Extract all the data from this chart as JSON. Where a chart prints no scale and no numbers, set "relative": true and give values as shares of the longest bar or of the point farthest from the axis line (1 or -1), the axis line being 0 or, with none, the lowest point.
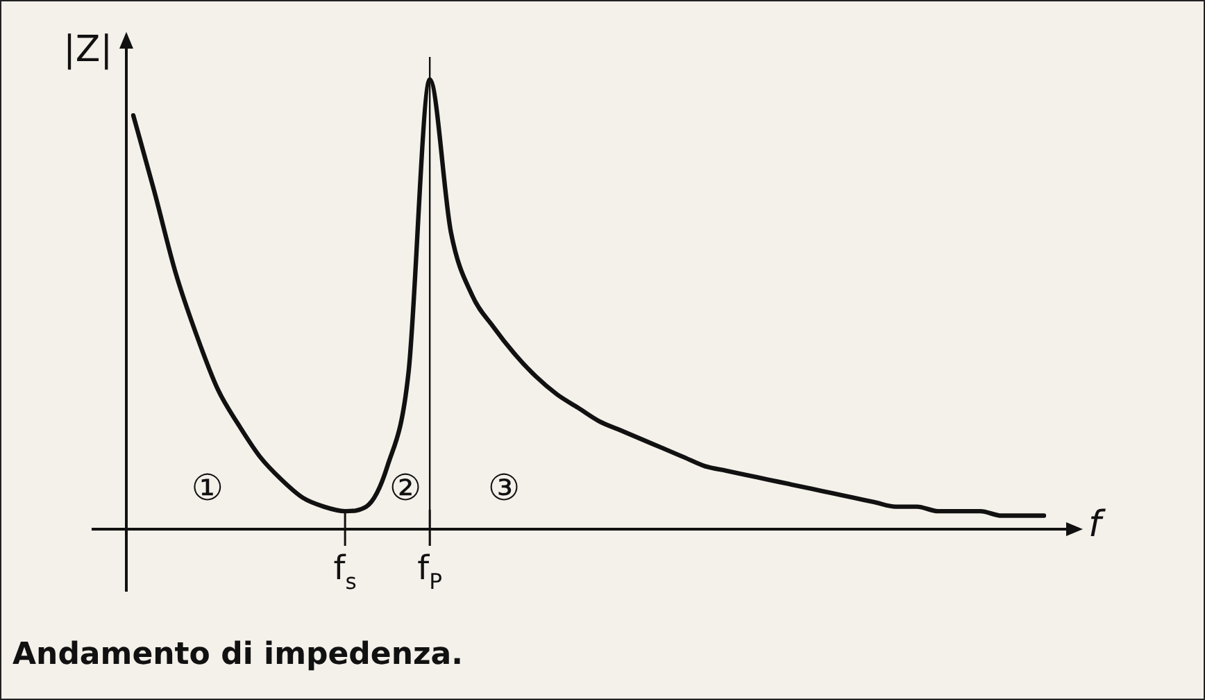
{
  "chart_data": {
    "type": "line",
    "relative": true,
    "title": "Andamento di impedenza.",
    "xlabel": "f",
    "ylabel": "|Z|",
    "categories": [
      null,
      null,
      null,
      null,
      null,
      null,
      null,
      null,
      null,
      null,
      "f$_{s}$",
      null,
      null,
      null,
      "f$_{P}$",
      null,
      null,
      null,
      null,
      null,
      null,
      null,
      null,
      null,
      null,
      null,
      null,
      null,
      null,
      null,
      null,
      null,
      null,
      null,
      null,
      null,
      null,
      null,
      null,
      null,
      null,
      null,
      null,
      null
    ],
    "series": [
      {
        "color": "#111111",
        "values": [
          0.92,
          0.75,
          0.57,
          0.43,
          0.31,
          0.23,
          0.16,
          0.11,
          0.07,
          0.05,
          0.04,
          0.05,
          0.14,
          0.35,
          1.0,
          0.66,
          0.52,
          0.45,
          0.39,
          0.34,
          0.3,
          0.27,
          0.24,
          0.22,
          0.2,
          0.18,
          0.16,
          0.14,
          0.13,
          0.12,
          0.11,
          0.1,
          0.09,
          0.08,
          0.07,
          0.06,
          0.05,
          0.05,
          0.04,
          0.04,
          0.04,
          0.03,
          0.03,
          0.03
        ]
      }
    ],
    "ref_lines": [
      {
        "axis": "x",
        "value": "f$_{P}$"
      }
    ],
    "annotations": [
      "①",
      "②",
      "③"
    ],
    "grid": false,
    "legend": false,
    "marker": "none",
    "line_style": "solid"
  }
}
